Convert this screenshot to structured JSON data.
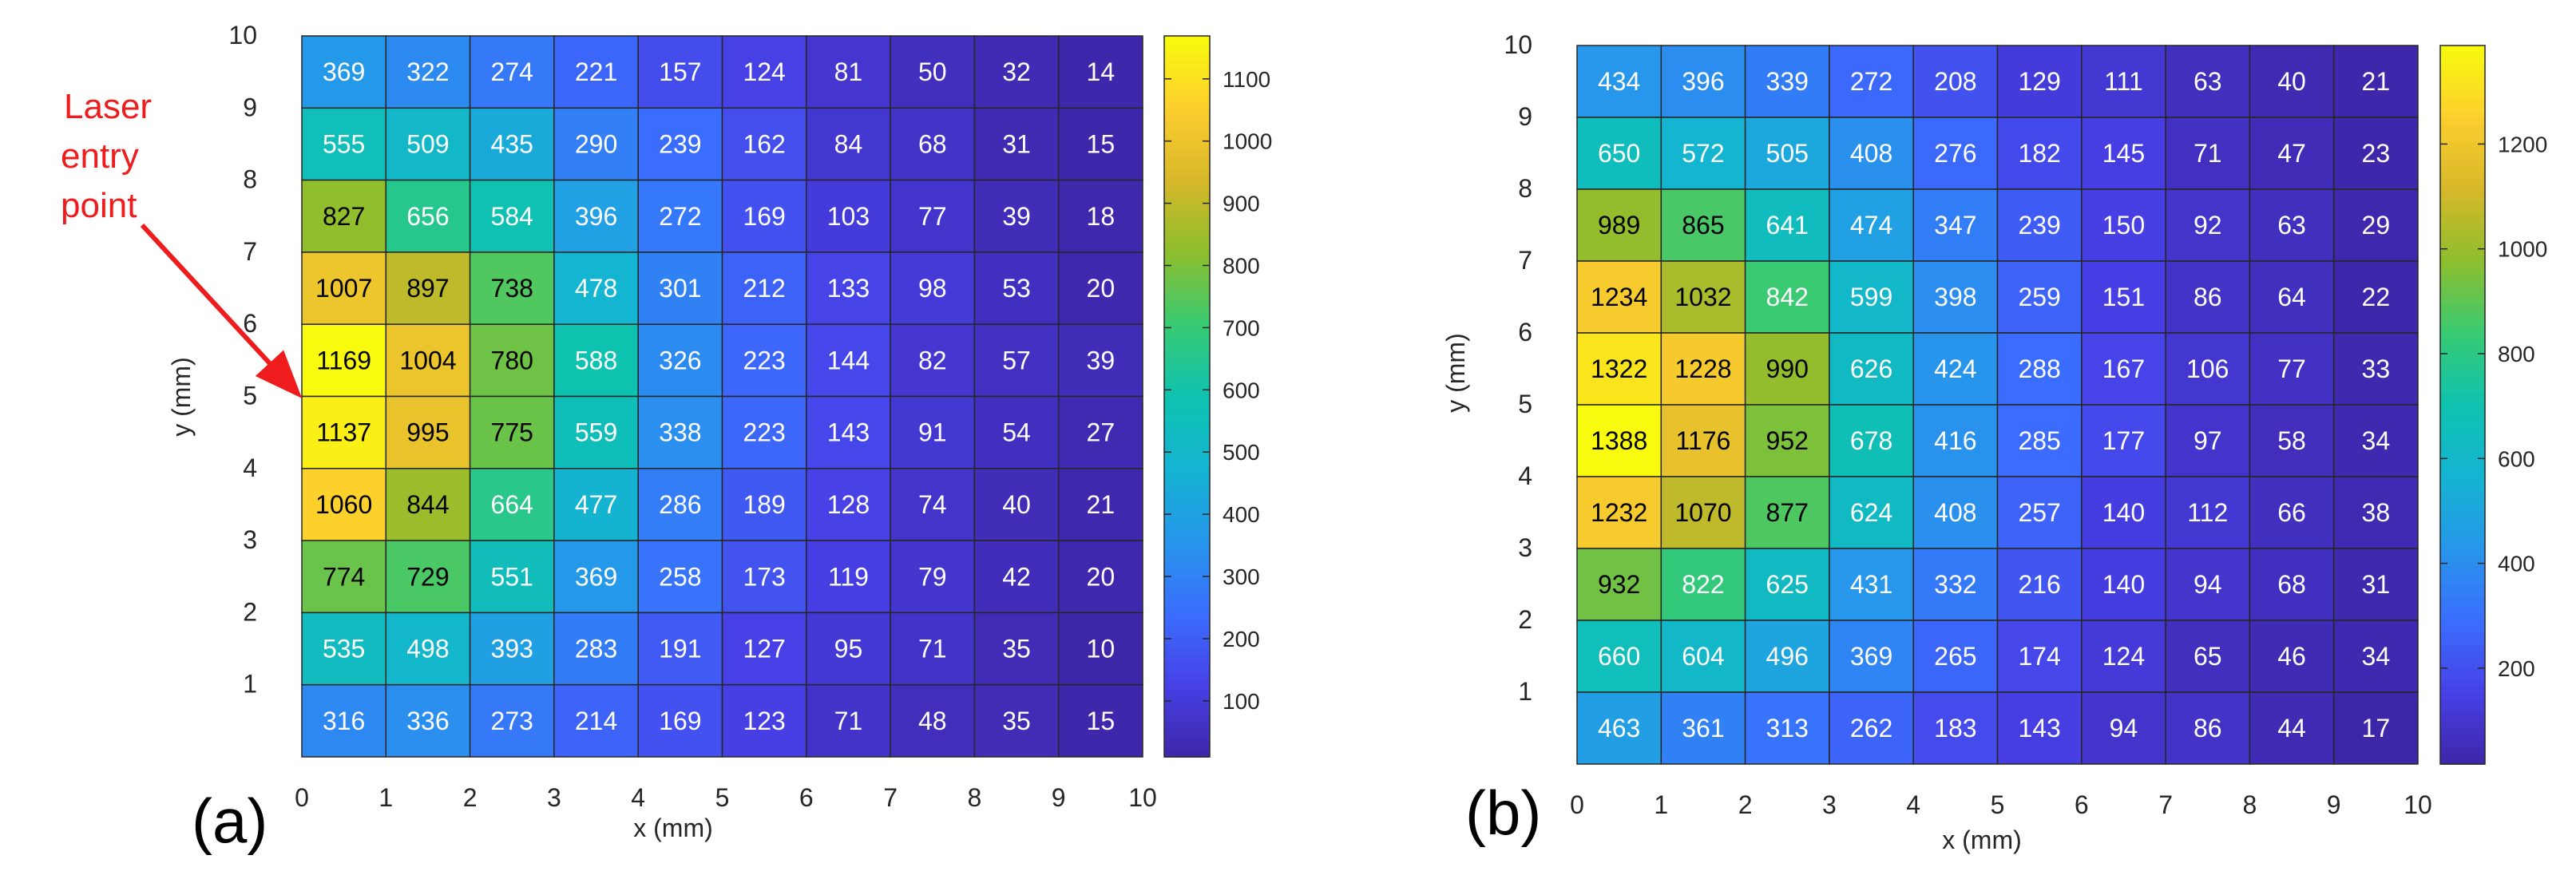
{
  "annotation": {
    "lines": [
      "Laser",
      "entry",
      "point"
    ],
    "color": "#ee1c1c"
  },
  "chart_data": [
    {
      "type": "heatmap",
      "panel_label": "(a)",
      "xlabel": "x (mm)",
      "ylabel": "y (mm)",
      "xlim": [
        0,
        10
      ],
      "ylim": [
        0,
        10
      ],
      "x_ticks": [
        "0",
        "1",
        "2",
        "3",
        "4",
        "5",
        "6",
        "7",
        "8",
        "9",
        "10"
      ],
      "y_ticks": [
        "1",
        "2",
        "3",
        "4",
        "5",
        "6",
        "7",
        "8",
        "9",
        "10"
      ],
      "colorbar": {
        "min": 10,
        "max": 1169,
        "ticks": [
          "100",
          "200",
          "300",
          "400",
          "500",
          "600",
          "700",
          "800",
          "900",
          "1000",
          "1100"
        ]
      },
      "rows_top_to_bottom": [
        [
          369,
          322,
          274,
          221,
          157,
          124,
          81,
          50,
          32,
          14
        ],
        [
          555,
          509,
          435,
          290,
          239,
          162,
          84,
          68,
          31,
          15
        ],
        [
          827,
          656,
          584,
          396,
          272,
          169,
          103,
          77,
          39,
          18
        ],
        [
          1007,
          897,
          738,
          478,
          301,
          212,
          133,
          98,
          53,
          20
        ],
        [
          1169,
          1004,
          780,
          588,
          326,
          223,
          144,
          82,
          57,
          39
        ],
        [
          1137,
          995,
          775,
          559,
          338,
          223,
          143,
          91,
          54,
          27
        ],
        [
          1060,
          844,
          664,
          477,
          286,
          189,
          128,
          74,
          40,
          21
        ],
        [
          774,
          729,
          551,
          369,
          258,
          173,
          119,
          79,
          42,
          20
        ],
        [
          535,
          498,
          393,
          283,
          191,
          127,
          95,
          71,
          35,
          10
        ],
        [
          316,
          336,
          273,
          214,
          169,
          123,
          71,
          48,
          35,
          15
        ]
      ]
    },
    {
      "type": "heatmap",
      "panel_label": "(b)",
      "xlabel": "x (mm)",
      "ylabel": "y (mm)",
      "xlim": [
        0,
        10
      ],
      "ylim": [
        0,
        10
      ],
      "x_ticks": [
        "0",
        "1",
        "2",
        "3",
        "4",
        "5",
        "6",
        "7",
        "8",
        "9",
        "10"
      ],
      "y_ticks": [
        "1",
        "2",
        "3",
        "4",
        "5",
        "6",
        "7",
        "8",
        "9",
        "10"
      ],
      "colorbar": {
        "min": 17,
        "max": 1388,
        "ticks": [
          "200",
          "400",
          "600",
          "800",
          "1000",
          "1200"
        ]
      },
      "rows_top_to_bottom": [
        [
          434,
          396,
          339,
          272,
          208,
          129,
          111,
          63,
          40,
          21
        ],
        [
          650,
          572,
          505,
          408,
          276,
          182,
          145,
          71,
          47,
          23
        ],
        [
          989,
          865,
          641,
          474,
          347,
          239,
          150,
          92,
          63,
          29
        ],
        [
          1234,
          1032,
          842,
          599,
          398,
          259,
          151,
          86,
          64,
          22
        ],
        [
          1322,
          1228,
          990,
          626,
          424,
          288,
          167,
          106,
          77,
          33
        ],
        [
          1388,
          1176,
          952,
          678,
          416,
          285,
          177,
          97,
          58,
          34
        ],
        [
          1232,
          1070,
          877,
          624,
          408,
          257,
          140,
          112,
          66,
          38
        ],
        [
          932,
          822,
          625,
          431,
          332,
          216,
          140,
          94,
          68,
          31
        ],
        [
          660,
          604,
          496,
          369,
          265,
          174,
          124,
          65,
          46,
          34
        ],
        [
          463,
          361,
          313,
          262,
          183,
          143,
          94,
          86,
          44,
          17
        ]
      ]
    }
  ]
}
